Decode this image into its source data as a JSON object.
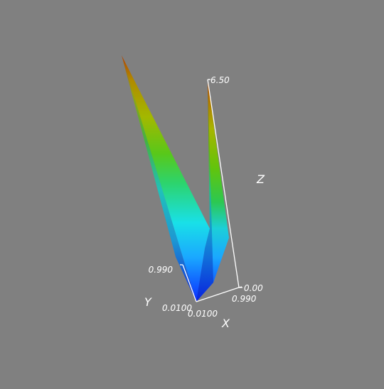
{
  "chart_data": {
    "type": "surface3d",
    "title": "",
    "axes": {
      "x": {
        "label": "X",
        "range": [
          0.01,
          0.99
        ],
        "tick_labels": [
          "0.0100",
          "0.990"
        ]
      },
      "y": {
        "label": "Y",
        "range": [
          0.01,
          0.99
        ],
        "tick_labels": [
          "0.0100",
          "0.990"
        ]
      },
      "z": {
        "label": "Z",
        "range": [
          0.0,
          6.5
        ],
        "tick_labels": [
          "0.00",
          "6.50"
        ]
      }
    },
    "surface": {
      "description_values": [
        {
          "x": 0.01,
          "y": 0.01,
          "z": 0.0
        },
        {
          "x": 0.01,
          "y": 0.99,
          "z": 6.5
        },
        {
          "x": 0.99,
          "y": 0.01,
          "z": 6.5
        },
        {
          "x": 0.5,
          "y": 0.5,
          "z": 1.8
        }
      ],
      "colormap": "rainbow",
      "color_low": "#0000ff",
      "color_high": "#b34000"
    },
    "background_color": "#808080",
    "grid": false,
    "legend": "none"
  }
}
